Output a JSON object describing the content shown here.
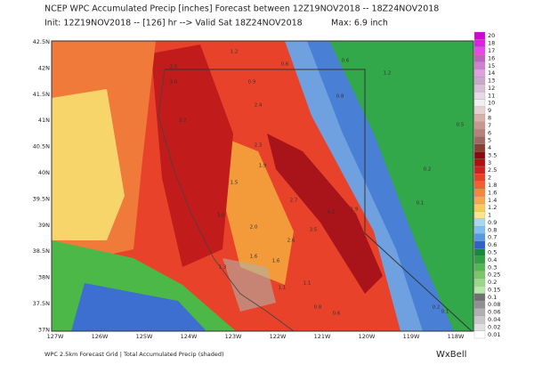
{
  "header": {
    "title": "NCEP WPC Accumulated Precip [inches] Forecast between 12Z19NOV2018 -- 18Z24NOV2018",
    "init": "Init: 12Z19NOV2018 -- [126] hr --> Valid Sat 18Z24NOV2018",
    "max": "Max: 6.9 inch"
  },
  "map": {
    "lat_labels": [
      "42.5N",
      "42N",
      "41.5N",
      "41N",
      "40.5N",
      "40N",
      "39.5N",
      "39N",
      "38.5N",
      "38N",
      "37.5N",
      "37N"
    ],
    "lon_labels": [
      "127W",
      "126W",
      "125W",
      "124W",
      "123W",
      "122W",
      "121W",
      "120W",
      "119W",
      "118W"
    ],
    "annotations": [
      "3.5",
      "3.0",
      "3.2",
      "1.2",
      "0.9",
      "2.4",
      "0.6",
      "0.6",
      "0.8",
      "1.2",
      "0.5",
      "0.2",
      "0.1",
      "2.3",
      "1.9",
      "1.5",
      "2.7",
      "4.2",
      "1.9",
      "3.0",
      "2.0",
      "3.5",
      "2.6",
      "1.6",
      "1.3",
      "1.6",
      "1.1",
      "1.1",
      "0.8",
      "0.6",
      "0.2",
      "0.1"
    ]
  },
  "colorbar": {
    "levels": [
      20,
      18,
      17,
      16,
      15,
      14,
      13,
      12,
      11,
      10,
      9,
      8,
      7,
      6,
      5,
      4,
      3.5,
      3,
      2.5,
      2,
      1.8,
      1.6,
      1.4,
      1.2,
      1,
      0.9,
      0.8,
      0.7,
      0.6,
      0.5,
      0.4,
      0.3,
      0.25,
      0.2,
      0.15,
      0.1,
      0.08,
      0.06,
      0.04,
      0.02,
      0.01
    ],
    "colors": [
      "#d400d4",
      "#e020e0",
      "#e848e8",
      "#c060c0",
      "#d080d0",
      "#e0a0e0",
      "#c8a8c8",
      "#d8c0d8",
      "#e8d8e8",
      "#f0f0f0",
      "#e8d0d0",
      "#d8b0a8",
      "#c89890",
      "#b88078",
      "#a06860",
      "#884030",
      "#8a0a10",
      "#b01010",
      "#d02020",
      "#e84020",
      "#f06030",
      "#f48838",
      "#f8a848",
      "#fcc860",
      "#fce488",
      "#a8d8f0",
      "#80c0f0",
      "#5898e0",
      "#3060c8",
      "#1a8a3a",
      "#30a040",
      "#50b850",
      "#78c868",
      "#98d888",
      "#b8e8a8",
      "#707070",
      "#909090",
      "#b0b0b0",
      "#c8c8c8",
      "#e0e0e0",
      "#ffffff"
    ]
  },
  "footer": {
    "caption": "WPC 2.5km Forecast Grid | Total Accumulated Precip (shaded)",
    "brand": "WxBell"
  }
}
